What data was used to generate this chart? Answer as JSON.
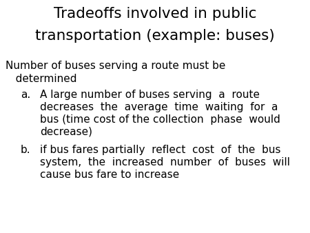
{
  "title_line1": "Tradeoffs involved in public",
  "title_line2": "transportation (example: buses)",
  "subtitle_line1": "Number of buses serving a route must be",
  "subtitle_line2": "   determined",
  "item_a_label": "a.",
  "item_a_line1": "A large number of buses serving  a  route",
  "item_a_line2": "decreases  the  average  time  waiting  for  a",
  "item_a_line3": "bus (time cost of the collection  phase  would",
  "item_a_line4": "decrease)",
  "item_b_label": "b.",
  "item_b_line1": "if bus fares partially  reflect  cost  of  the  bus",
  "item_b_line2": "system,  the  increased  number  of  buses  will",
  "item_b_line3": "cause bus fare to increase",
  "background_color": "#ffffff",
  "text_color": "#000000",
  "title_fontsize": 15.5,
  "body_fontsize": 11.0
}
